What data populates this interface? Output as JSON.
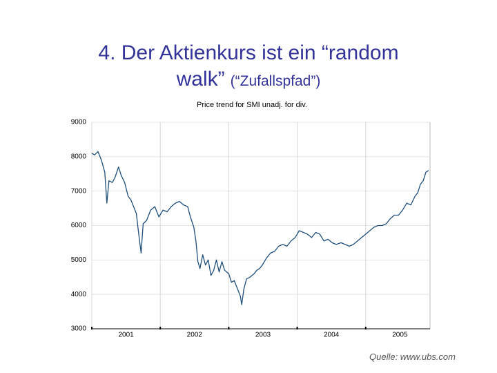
{
  "slide": {
    "title_line1": "4. Der Aktienkurs ist ein “random",
    "title_line2_main": "walk”",
    "title_line2_small": "(“Zufallspfad”)",
    "source": "Quelle: www.ubs.com"
  },
  "chart_data": {
    "type": "line",
    "title": "Price trend for SMI unadj. for div.",
    "color": "#1f4e79",
    "x": [
      2001.0,
      2001.04,
      2001.09,
      2001.14,
      2001.19,
      2001.22,
      2001.25,
      2001.3,
      2001.34,
      2001.39,
      2001.43,
      2001.48,
      2001.53,
      2001.57,
      2001.61,
      2001.65,
      2001.68,
      2001.72,
      2001.75,
      2001.8,
      2001.86,
      2001.92,
      2001.98,
      2002.04,
      2002.1,
      2002.16,
      2002.22,
      2002.28,
      2002.34,
      2002.4,
      2002.44,
      2002.49,
      2002.52,
      2002.55,
      2002.58,
      2002.62,
      2002.66,
      2002.7,
      2002.74,
      2002.78,
      2002.82,
      2002.86,
      2002.9,
      2002.94,
      2003.0,
      2003.04,
      2003.08,
      2003.12,
      2003.17,
      2003.19,
      2003.22,
      2003.26,
      2003.31,
      2003.37,
      2003.41,
      2003.45,
      2003.49,
      2003.55,
      2003.61,
      2003.67,
      2003.73,
      2003.79,
      2003.85,
      2003.91,
      2003.97,
      2004.03,
      2004.09,
      2004.15,
      2004.21,
      2004.27,
      2004.33,
      2004.39,
      2004.45,
      2004.51,
      2004.57,
      2004.64,
      2004.7,
      2004.76,
      2004.82,
      2004.88,
      2004.94,
      2005.0,
      2005.06,
      2005.12,
      2005.18,
      2005.24,
      2005.3,
      2005.36,
      2005.42,
      2005.48,
      2005.54,
      2005.6,
      2005.66,
      2005.72,
      2005.76,
      2005.8,
      2005.84,
      2005.88,
      2005.92
    ],
    "values": [
      8100,
      8050,
      8150,
      7900,
      7550,
      6650,
      7300,
      7250,
      7400,
      7700,
      7450,
      7250,
      6850,
      6750,
      6550,
      6350,
      5850,
      5200,
      6050,
      6150,
      6450,
      6550,
      6250,
      6450,
      6400,
      6550,
      6650,
      6700,
      6600,
      6550,
      6250,
      5950,
      5550,
      4950,
      4750,
      5150,
      4850,
      5000,
      4550,
      4700,
      5000,
      4650,
      4950,
      4700,
      4600,
      4350,
      4400,
      4200,
      3950,
      3700,
      4150,
      4450,
      4500,
      4600,
      4700,
      4750,
      4850,
      5050,
      5200,
      5250,
      5400,
      5450,
      5400,
      5550,
      5650,
      5850,
      5800,
      5750,
      5650,
      5800,
      5750,
      5550,
      5600,
      5500,
      5450,
      5500,
      5450,
      5400,
      5450,
      5550,
      5650,
      5750,
      5850,
      5950,
      6000,
      6000,
      6050,
      6200,
      6300,
      6300,
      6450,
      6650,
      6600,
      6850,
      6950,
      7200,
      7300,
      7550,
      7600
    ],
    "xlim": [
      2001,
      2005.94
    ],
    "xticks": [
      2001,
      2002,
      2003,
      2004,
      2005
    ],
    "ylim": [
      3000,
      9000
    ],
    "yticks": [
      3000,
      4000,
      5000,
      6000,
      7000,
      8000,
      9000
    ],
    "grid": true
  }
}
